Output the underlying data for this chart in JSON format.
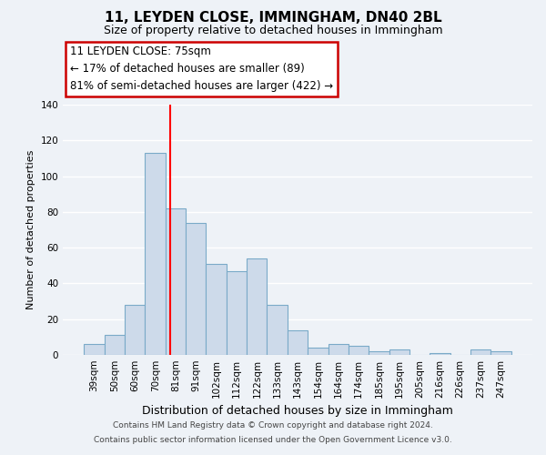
{
  "title": "11, LEYDEN CLOSE, IMMINGHAM, DN40 2BL",
  "subtitle": "Size of property relative to detached houses in Immingham",
  "xlabel": "Distribution of detached houses by size in Immingham",
  "ylabel": "Number of detached properties",
  "categories": [
    "39sqm",
    "50sqm",
    "60sqm",
    "70sqm",
    "81sqm",
    "91sqm",
    "102sqm",
    "112sqm",
    "122sqm",
    "133sqm",
    "143sqm",
    "154sqm",
    "164sqm",
    "174sqm",
    "185sqm",
    "195sqm",
    "205sqm",
    "216sqm",
    "226sqm",
    "237sqm",
    "247sqm"
  ],
  "values": [
    6,
    11,
    28,
    113,
    82,
    74,
    51,
    47,
    54,
    28,
    14,
    4,
    6,
    5,
    2,
    3,
    0,
    1,
    0,
    3,
    2
  ],
  "bar_color": "#cddaea",
  "bar_edge_color": "#7aaac8",
  "ylim": [
    0,
    140
  ],
  "yticks": [
    0,
    20,
    40,
    60,
    80,
    100,
    120,
    140
  ],
  "red_line_x": 3.72,
  "annotation_text": "11 LEYDEN CLOSE: 75sqm\n← 17% of detached houses are smaller (89)\n81% of semi-detached houses are larger (422) →",
  "annotation_box_color": "#ffffff",
  "annotation_box_edge": "#cc0000",
  "footer1": "Contains HM Land Registry data © Crown copyright and database right 2024.",
  "footer2": "Contains public sector information licensed under the Open Government Licence v3.0.",
  "background_color": "#eef2f7",
  "grid_color": "#ffffff",
  "title_fontsize": 11,
  "subtitle_fontsize": 9,
  "xlabel_fontsize": 9,
  "ylabel_fontsize": 8,
  "tick_fontsize": 7.5
}
